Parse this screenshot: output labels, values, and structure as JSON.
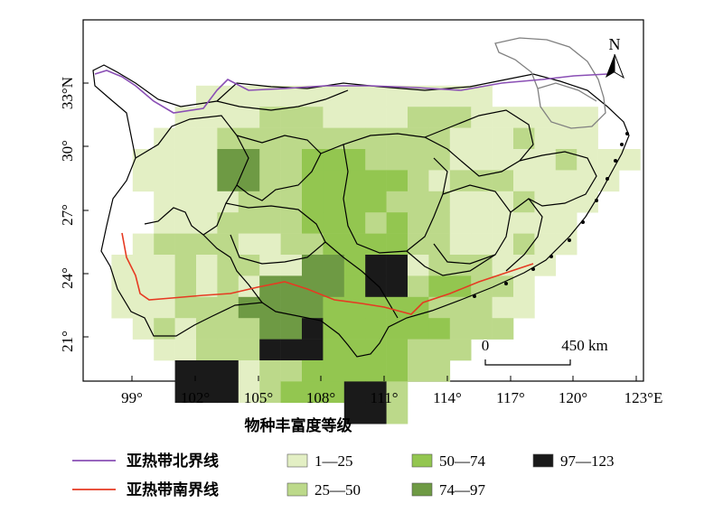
{
  "map": {
    "north_label": "N",
    "lat_labels": [
      "33°N",
      "30°",
      "27°",
      "24°",
      "21°"
    ],
    "lon_labels": [
      "99°",
      "102°",
      "105°",
      "108°",
      "111°",
      "114°",
      "117°",
      "120°",
      "123°E"
    ],
    "scale_bar": {
      "start_label": "0",
      "end_label": "450 km"
    },
    "colors": {
      "class_1": "#e3efc4",
      "class_2": "#bcd98a",
      "class_3": "#93c650",
      "class_4": "#6e9a44",
      "class_5": "#1a1a1a",
      "north_line": "#8a4fb5",
      "south_line": "#e63a22",
      "boundary": "#000000",
      "coast_gray": "#808080"
    }
  },
  "legend": {
    "title": "物种丰富度等级",
    "lines": [
      {
        "label": "亚热带北界线",
        "color": "#8a4fb5"
      },
      {
        "label": "亚热带南界线",
        "color": "#e63a22"
      }
    ],
    "classes": [
      {
        "label": "1—25",
        "color": "#e3efc4"
      },
      {
        "label": "25—50",
        "color": "#bcd98a"
      },
      {
        "label": "50—74",
        "color": "#93c650"
      },
      {
        "label": "74—97",
        "color": "#6e9a44"
      },
      {
        "label": "97—123",
        "color": "#1a1a1a"
      }
    ]
  }
}
